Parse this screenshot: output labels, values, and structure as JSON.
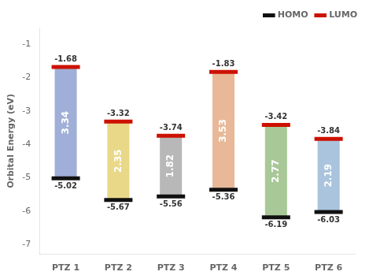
{
  "chart_data": {
    "type": "bar",
    "categories": [
      "PTZ 1",
      "PTZ 2",
      "PTZ 3",
      "PTZ 4",
      "PTZ 5",
      "PTZ 6"
    ],
    "series": [
      {
        "name": "HOMO",
        "color": "#111111",
        "values": [
          -5.02,
          -5.67,
          -5.56,
          -5.36,
          -6.19,
          -6.03
        ]
      },
      {
        "name": "LUMO",
        "color": "#cc1100",
        "values": [
          -1.68,
          -3.32,
          -3.74,
          -1.83,
          -3.42,
          -3.84
        ]
      }
    ],
    "gaps": [
      3.34,
      2.35,
      1.82,
      3.53,
      2.77,
      2.19
    ],
    "colors": [
      "#a0afd8",
      "#e8d888",
      "#b8b8b8",
      "#e8b898",
      "#a8c898",
      "#aac4dd"
    ],
    "ylabel": "Orbital Energy (eV)",
    "ylim": [
      -7.3,
      -0.5
    ],
    "yticks": [
      -7,
      -6,
      -5,
      -4,
      -3,
      -2,
      -1
    ],
    "grid": false,
    "legend": "upper right",
    "data_labels": true
  }
}
